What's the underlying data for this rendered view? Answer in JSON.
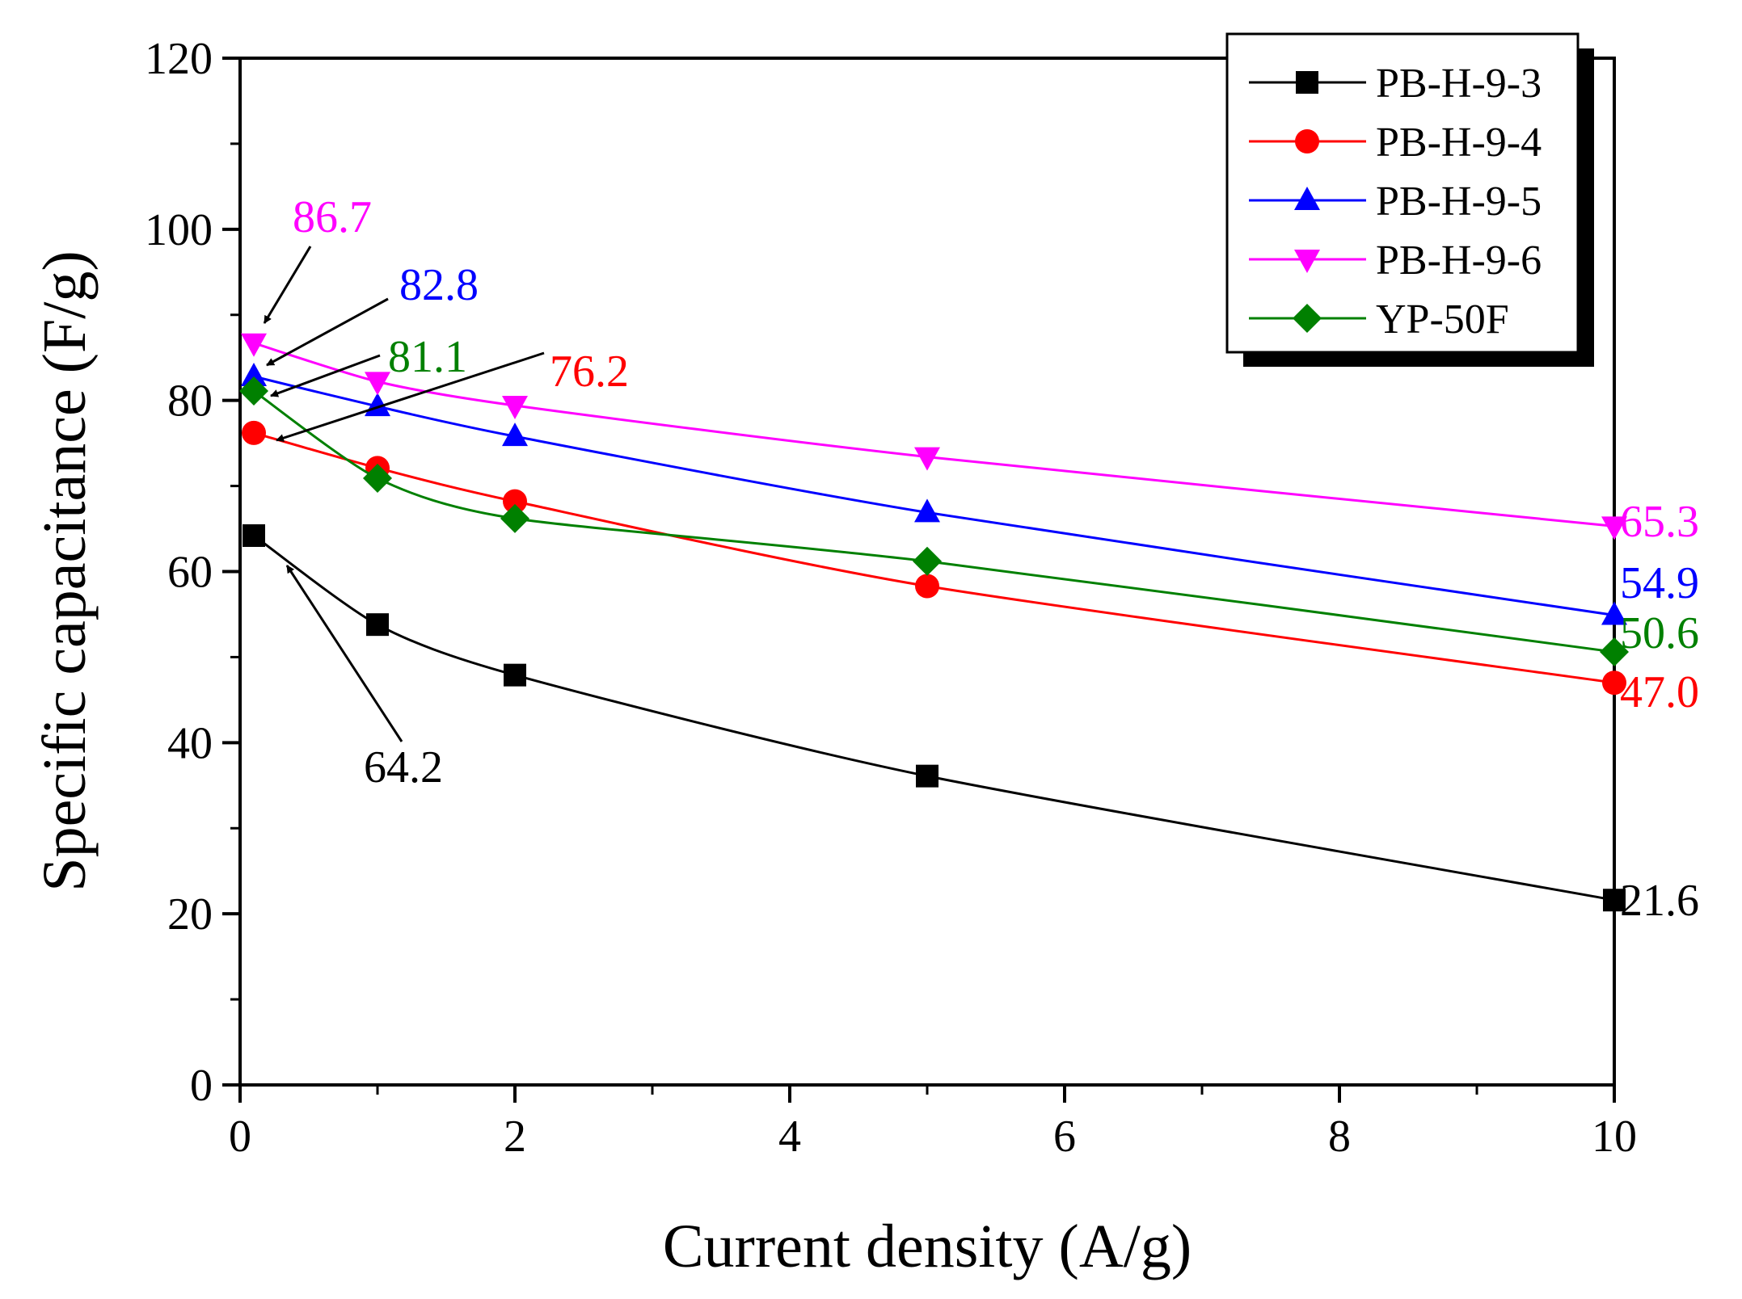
{
  "chart_data": {
    "type": "line",
    "title": "",
    "xlabel": "Current density (A/g)",
    "ylabel": "Specific capacitance (F/g)",
    "xlim": [
      0,
      10
    ],
    "ylim": [
      0,
      120
    ],
    "xticks": [
      "0",
      "2",
      "4",
      "6",
      "8",
      "10"
    ],
    "yticks": [
      "0",
      "20",
      "40",
      "60",
      "80",
      "100",
      "120"
    ],
    "grid": false,
    "legend_position": "top-right",
    "x": [
      0.1,
      1,
      2,
      5,
      10
    ],
    "series": [
      {
        "name": "PB-H-9-3",
        "color": "#000000",
        "marker": "square",
        "values": [
          64.2,
          53.8,
          47.9,
          36.1,
          21.6
        ]
      },
      {
        "name": "PB-H-9-4",
        "color": "#ff0000",
        "marker": "circle",
        "values": [
          76.2,
          72.1,
          68.2,
          58.3,
          47.0
        ]
      },
      {
        "name": "PB-H-9-5",
        "color": "#0000ff",
        "marker": "triangle-up",
        "values": [
          82.8,
          79.3,
          75.8,
          66.9,
          54.9
        ]
      },
      {
        "name": "PB-H-9-6",
        "color": "#ff00ff",
        "marker": "triangle-down",
        "values": [
          86.7,
          82.2,
          79.4,
          73.4,
          65.3
        ]
      },
      {
        "name": "YP-50F",
        "color": "#008000",
        "marker": "diamond",
        "values": [
          81.1,
          70.9,
          66.2,
          61.2,
          50.6
        ]
      }
    ],
    "annotations": [
      {
        "text": "86.7",
        "color": "#ff00ff"
      },
      {
        "text": "82.8",
        "color": "#0000ff"
      },
      {
        "text": "81.1",
        "color": "#008000"
      },
      {
        "text": "76.2",
        "color": "#ff0000"
      },
      {
        "text": "64.2",
        "color": "#000000"
      },
      {
        "text": "65.3",
        "color": "#ff00ff"
      },
      {
        "text": "54.9",
        "color": "#0000ff"
      },
      {
        "text": "50.6",
        "color": "#008000"
      },
      {
        "text": "47.0",
        "color": "#ff0000"
      },
      {
        "text": "21.6",
        "color": "#000000"
      }
    ]
  }
}
